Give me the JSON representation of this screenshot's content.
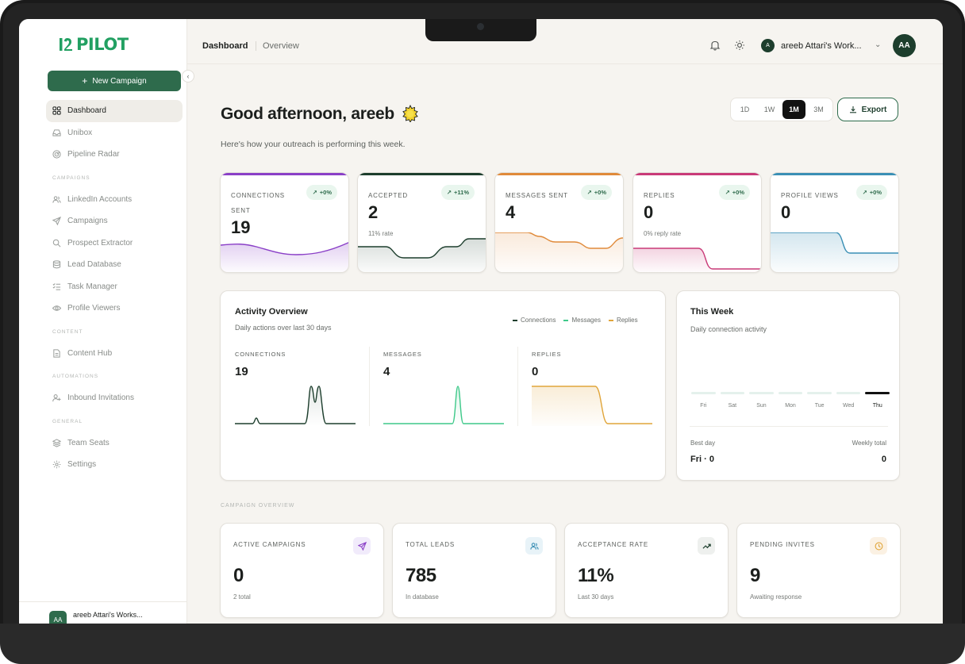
{
  "sidebar": {
    "logo_text": "PILOT",
    "new_campaign_label": "New Campaign",
    "nav": [
      {
        "label": "Dashboard",
        "active": true,
        "icon": "grid-icon"
      },
      {
        "label": "Unibox",
        "icon": "inbox-icon"
      },
      {
        "label": "Pipeline Radar",
        "icon": "radar-icon"
      }
    ],
    "sections": {
      "campaigns": "CAMPAIGNS",
      "content": "CONTENT",
      "automations": "AUTOMATIONS",
      "general": "GENERAL"
    },
    "campaign_items": [
      "LinkedIn Accounts",
      "Campaigns",
      "Prospect Extractor",
      "Lead Database",
      "Task Manager",
      "Profile Viewers"
    ],
    "content_items": [
      "Content Hub"
    ],
    "automation_items": [
      "Inbound Invitations"
    ],
    "general_items": [
      "Team Seats",
      "Settings"
    ],
    "footer_avatar": "AA",
    "footer_name": "areeb Attari's Works..."
  },
  "topbar": {
    "crumb_active": "Dashboard",
    "crumb_other": "Overview",
    "workspace_initial": "A",
    "workspace_name": "areeb Attari's Work...",
    "avatar": "AA"
  },
  "header": {
    "greeting": "Good afternoon, areeb",
    "subtitle": "Here's how your outreach is performing this week.",
    "ranges": [
      "1D",
      "1W",
      "1M",
      "3M"
    ],
    "selected_range": "1M",
    "export_label": "Export"
  },
  "stats": [
    {
      "label": "CONNECTIONS SENT",
      "value": "19",
      "badge": "+0%",
      "sub": "",
      "color": "#8a3fc7"
    },
    {
      "label": "ACCEPTED",
      "value": "2",
      "badge": "+11%",
      "sub": "11% rate",
      "color": "#1d3e2d"
    },
    {
      "label": "MESSAGES SENT",
      "value": "4",
      "badge": "+0%",
      "sub": "",
      "color": "#e08a3a"
    },
    {
      "label": "REPLIES",
      "value": "0",
      "badge": "+0%",
      "sub": "0% reply rate",
      "color": "#c93a78"
    },
    {
      "label": "PROFILE VIEWS",
      "value": "0",
      "badge": "+0%",
      "sub": "",
      "color": "#3a8fb5"
    }
  ],
  "activity": {
    "title": "Activity Overview",
    "subtitle": "Daily actions over last 30 days",
    "legend": [
      {
        "name": "Connections",
        "color": "#1d3e2d"
      },
      {
        "name": "Messages",
        "color": "#3fc98a"
      },
      {
        "name": "Replies",
        "color": "#e0a53a"
      }
    ],
    "metrics": [
      {
        "label": "CONNECTIONS",
        "value": "19"
      },
      {
        "label": "MESSAGES",
        "value": "4"
      },
      {
        "label": "REPLIES",
        "value": "0"
      }
    ]
  },
  "week": {
    "title": "This Week",
    "subtitle": "Daily connection activity",
    "days": [
      "Fri",
      "Sat",
      "Sun",
      "Mon",
      "Tue",
      "Wed",
      "Thu"
    ],
    "active_day": "Thu",
    "best_day_label": "Best day",
    "best_day_value": "Fri · 0",
    "total_label": "Weekly total",
    "total_value": "0"
  },
  "campaign_overview": {
    "section_label": "CAMPAIGN OVERVIEW",
    "cards": [
      {
        "label": "ACTIVE CAMPAIGNS",
        "value": "0",
        "sub": "2 total",
        "icon": "send-icon",
        "tint": "#f1ebfb",
        "iconColor": "#8a3fc7"
      },
      {
        "label": "TOTAL LEADS",
        "value": "785",
        "sub": "In database",
        "icon": "users-icon",
        "tint": "#e8f3f8",
        "iconColor": "#3a8fb5"
      },
      {
        "label": "ACCEPTANCE RATE",
        "value": "11%",
        "sub": "Last 30 days",
        "icon": "trend-up-icon",
        "tint": "#eef0ee",
        "iconColor": "#1d3e2d"
      },
      {
        "label": "PENDING INVITES",
        "value": "9",
        "sub": "Awaiting response",
        "icon": "clock-icon",
        "tint": "#fbf1e3",
        "iconColor": "#e0a53a"
      }
    ]
  }
}
